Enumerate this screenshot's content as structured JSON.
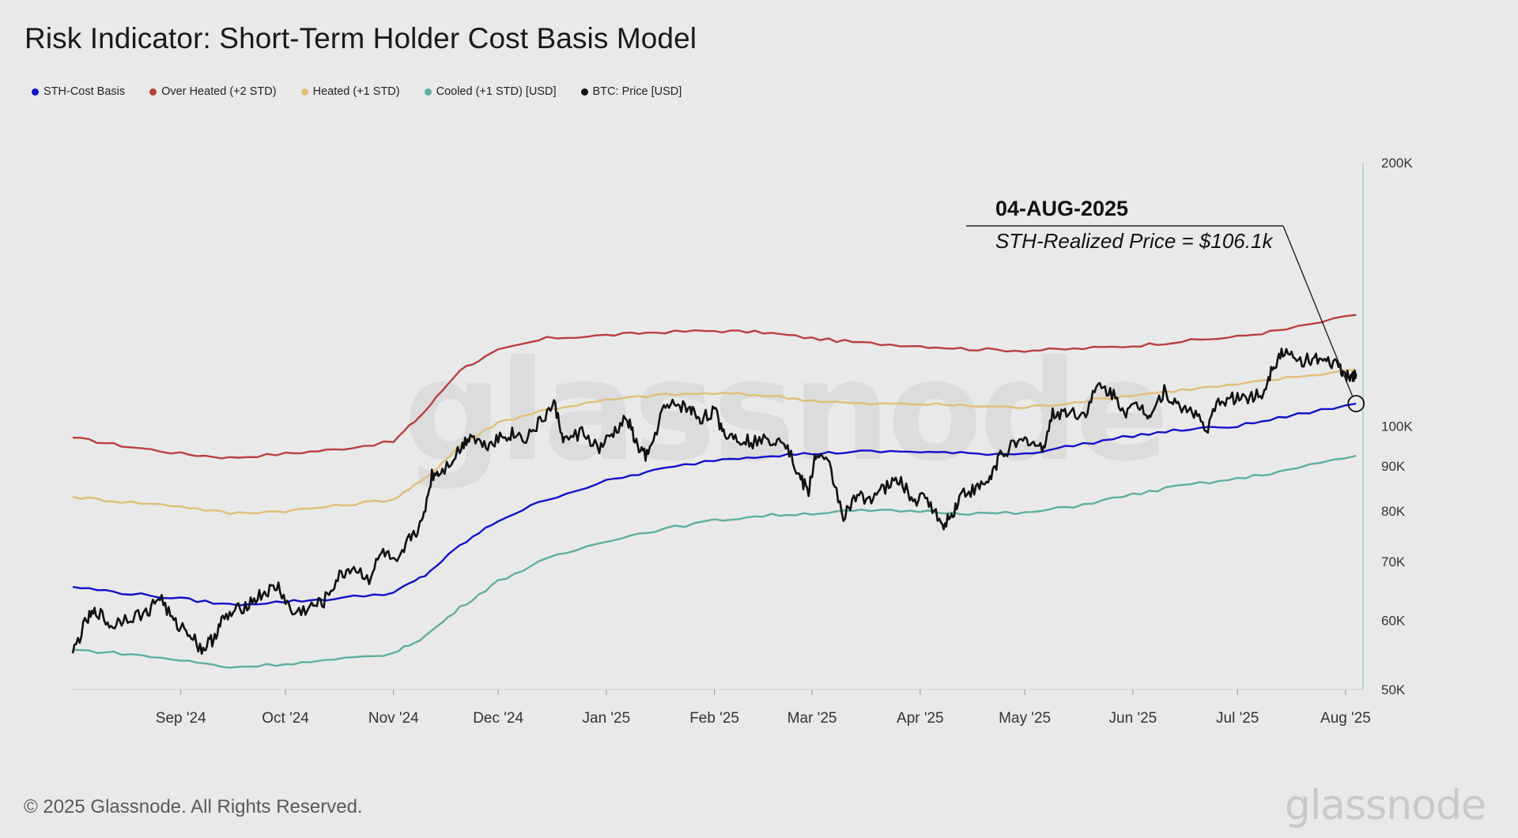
{
  "title": "Risk Indicator: Short-Term Holder Cost Basis Model",
  "legend": [
    {
      "label": "STH-Cost Basis",
      "color": "#1111cc"
    },
    {
      "label": "Over Heated (+2 STD)",
      "color": "#b8403f"
    },
    {
      "label": "Heated (+1 STD)",
      "color": "#e3bd78"
    },
    {
      "label": "Cooled (+1 STD) [USD]",
      "color": "#5fae9f"
    },
    {
      "label": "BTC: Price [USD]",
      "color": "#111111"
    }
  ],
  "annotation": {
    "date": "04-AUG-2025",
    "text": "STH-Realized Price = $106.1k",
    "value": 106100
  },
  "watermark": "glassnode",
  "footer": "© 2025 Glassnode. All Rights Reserved.",
  "brand": "glassnode",
  "chart_data": {
    "type": "line",
    "title": "Risk Indicator: Short-Term Holder Cost Basis Model",
    "y_scale": "log",
    "ylim": [
      50000,
      200000
    ],
    "y_ticks": [
      {
        "label": "200K",
        "value": 200000
      },
      {
        "label": "100K",
        "value": 100000
      },
      {
        "label": "90K",
        "value": 90000
      },
      {
        "label": "80K",
        "value": 80000
      },
      {
        "label": "70K",
        "value": 70000
      },
      {
        "label": "60K",
        "value": 60000
      },
      {
        "label": "50K",
        "value": 50000
      }
    ],
    "xlim": [
      "2024-08-01",
      "2025-08-06"
    ],
    "x_ticks": [
      {
        "label": "Sep '24",
        "date": "2024-09-01"
      },
      {
        "label": "Oct '24",
        "date": "2024-10-01"
      },
      {
        "label": "Nov '24",
        "date": "2024-11-01"
      },
      {
        "label": "Dec '24",
        "date": "2024-12-01"
      },
      {
        "label": "Jan '25",
        "date": "2025-01-01"
      },
      {
        "label": "Feb '25",
        "date": "2025-02-01"
      },
      {
        "label": "Mar '25",
        "date": "2025-03-01"
      },
      {
        "label": "Apr '25",
        "date": "2025-04-01"
      },
      {
        "label": "May '25",
        "date": "2025-05-01"
      },
      {
        "label": "Jun '25",
        "date": "2025-06-01"
      },
      {
        "label": "Jul '25",
        "date": "2025-07-01"
      },
      {
        "label": "Aug '25",
        "date": "2025-08-01"
      }
    ],
    "series": [
      {
        "name": "Over Heated (+2 STD)",
        "color": "#b8403f",
        "points": [
          [
            "2024-08-01",
            97000
          ],
          [
            "2024-08-15",
            95000
          ],
          [
            "2024-09-01",
            93000
          ],
          [
            "2024-09-15",
            92000
          ],
          [
            "2024-10-01",
            93000
          ],
          [
            "2024-10-15",
            94000
          ],
          [
            "2024-11-01",
            96000
          ],
          [
            "2024-11-10",
            104000
          ],
          [
            "2024-11-20",
            116000
          ],
          [
            "2024-12-01",
            122000
          ],
          [
            "2024-12-15",
            126000
          ],
          [
            "2025-01-01",
            127000
          ],
          [
            "2025-01-15",
            128000
          ],
          [
            "2025-02-01",
            128500
          ],
          [
            "2025-02-15",
            128000
          ],
          [
            "2025-03-01",
            126000
          ],
          [
            "2025-03-15",
            124500
          ],
          [
            "2025-04-01",
            123500
          ],
          [
            "2025-04-15",
            122500
          ],
          [
            "2025-05-01",
            122000
          ],
          [
            "2025-05-15",
            122500
          ],
          [
            "2025-06-01",
            123500
          ],
          [
            "2025-06-15",
            125000
          ],
          [
            "2025-07-01",
            126500
          ],
          [
            "2025-07-15",
            129000
          ],
          [
            "2025-08-04",
            134000
          ]
        ]
      },
      {
        "name": "Heated (+1 STD)",
        "color": "#e3bd78",
        "points": [
          [
            "2024-08-01",
            83000
          ],
          [
            "2024-08-15",
            82000
          ],
          [
            "2024-09-01",
            81000
          ],
          [
            "2024-09-15",
            79500
          ],
          [
            "2024-10-01",
            80000
          ],
          [
            "2024-10-15",
            81000
          ],
          [
            "2024-11-01",
            82500
          ],
          [
            "2024-11-10",
            87000
          ],
          [
            "2024-11-20",
            95000
          ],
          [
            "2024-12-01",
            101000
          ],
          [
            "2024-12-15",
            104500
          ],
          [
            "2025-01-01",
            107000
          ],
          [
            "2025-01-15",
            108500
          ],
          [
            "2025-02-01",
            109000
          ],
          [
            "2025-02-15",
            108500
          ],
          [
            "2025-03-01",
            107000
          ],
          [
            "2025-03-15",
            106000
          ],
          [
            "2025-04-01",
            106000
          ],
          [
            "2025-04-15",
            105500
          ],
          [
            "2025-05-01",
            105000
          ],
          [
            "2025-05-15",
            106500
          ],
          [
            "2025-06-01",
            108500
          ],
          [
            "2025-06-15",
            110000
          ],
          [
            "2025-07-01",
            111500
          ],
          [
            "2025-07-15",
            113500
          ],
          [
            "2025-08-04",
            116000
          ]
        ]
      },
      {
        "name": "STH-Cost Basis",
        "color": "#1111cc",
        "points": [
          [
            "2024-08-01",
            65500
          ],
          [
            "2024-08-15",
            64500
          ],
          [
            "2024-09-01",
            63500
          ],
          [
            "2024-09-15",
            62500
          ],
          [
            "2024-10-01",
            63000
          ],
          [
            "2024-10-15",
            63500
          ],
          [
            "2024-11-01",
            64500
          ],
          [
            "2024-11-10",
            67500
          ],
          [
            "2024-11-20",
            73000
          ],
          [
            "2024-12-01",
            78000
          ],
          [
            "2024-12-15",
            82500
          ],
          [
            "2025-01-01",
            86500
          ],
          [
            "2025-01-15",
            89000
          ],
          [
            "2025-02-01",
            91500
          ],
          [
            "2025-02-15",
            92500
          ],
          [
            "2025-03-01",
            93000
          ],
          [
            "2025-03-15",
            93500
          ],
          [
            "2025-04-01",
            93500
          ],
          [
            "2025-04-15",
            93000
          ],
          [
            "2025-05-01",
            93000
          ],
          [
            "2025-05-15",
            95000
          ],
          [
            "2025-06-01",
            97500
          ],
          [
            "2025-06-15",
            99000
          ],
          [
            "2025-07-01",
            100000
          ],
          [
            "2025-07-15",
            102500
          ],
          [
            "2025-08-04",
            106100
          ]
        ]
      },
      {
        "name": "Cooled (+1 STD) [USD]",
        "color": "#5fae9f",
        "points": [
          [
            "2024-08-01",
            55500
          ],
          [
            "2024-08-15",
            55000
          ],
          [
            "2024-09-01",
            54000
          ],
          [
            "2024-09-15",
            53000
          ],
          [
            "2024-10-01",
            53500
          ],
          [
            "2024-10-15",
            54000
          ],
          [
            "2024-11-01",
            55000
          ],
          [
            "2024-11-10",
            57500
          ],
          [
            "2024-11-20",
            62000
          ],
          [
            "2024-12-01",
            66500
          ],
          [
            "2024-12-15",
            70500
          ],
          [
            "2025-01-01",
            74000
          ],
          [
            "2025-01-15",
            76000
          ],
          [
            "2025-02-01",
            78000
          ],
          [
            "2025-02-15",
            79000
          ],
          [
            "2025-03-01",
            79500
          ],
          [
            "2025-03-15",
            80000
          ],
          [
            "2025-04-01",
            80000
          ],
          [
            "2025-04-15",
            79500
          ],
          [
            "2025-05-01",
            79500
          ],
          [
            "2025-05-15",
            81000
          ],
          [
            "2025-06-01",
            83500
          ],
          [
            "2025-06-15",
            85500
          ],
          [
            "2025-07-01",
            87000
          ],
          [
            "2025-07-15",
            89000
          ],
          [
            "2025-08-04",
            92500
          ]
        ]
      },
      {
        "name": "BTC: Price [USD]",
        "color": "#111111",
        "points": [
          [
            "2024-08-01",
            55000
          ],
          [
            "2024-08-05",
            60000
          ],
          [
            "2024-08-08",
            61500
          ],
          [
            "2024-08-12",
            59000
          ],
          [
            "2024-08-16",
            60500
          ],
          [
            "2024-08-22",
            61000
          ],
          [
            "2024-08-26",
            64000
          ],
          [
            "2024-08-30",
            59500
          ],
          [
            "2024-09-03",
            58500
          ],
          [
            "2024-09-07",
            55500
          ],
          [
            "2024-09-10",
            57000
          ],
          [
            "2024-09-13",
            60000
          ],
          [
            "2024-09-17",
            61500
          ],
          [
            "2024-09-21",
            63000
          ],
          [
            "2024-09-25",
            64500
          ],
          [
            "2024-09-29",
            65500
          ],
          [
            "2024-10-03",
            61000
          ],
          [
            "2024-10-08",
            62000
          ],
          [
            "2024-10-12",
            63000
          ],
          [
            "2024-10-16",
            67000
          ],
          [
            "2024-10-20",
            69000
          ],
          [
            "2024-10-25",
            67000
          ],
          [
            "2024-10-29",
            72000
          ],
          [
            "2024-11-02",
            69000
          ],
          [
            "2024-11-06",
            75000
          ],
          [
            "2024-11-09",
            77000
          ],
          [
            "2024-11-12",
            88000
          ],
          [
            "2024-11-15",
            89000
          ],
          [
            "2024-11-20",
            94000
          ],
          [
            "2024-11-23",
            98000
          ],
          [
            "2024-11-27",
            95000
          ],
          [
            "2024-12-01",
            97000
          ],
          [
            "2024-12-05",
            98000
          ],
          [
            "2024-12-09",
            97000
          ],
          [
            "2024-12-13",
            101000
          ],
          [
            "2024-12-17",
            106000
          ],
          [
            "2024-12-20",
            96000
          ],
          [
            "2024-12-25",
            98500
          ],
          [
            "2024-12-30",
            94000
          ],
          [
            "2025-01-03",
            98000
          ],
          [
            "2025-01-07",
            102000
          ],
          [
            "2025-01-10",
            94500
          ],
          [
            "2025-01-13",
            92000
          ],
          [
            "2025-01-17",
            104000
          ],
          [
            "2025-01-21",
            106000
          ],
          [
            "2025-01-25",
            104500
          ],
          [
            "2025-01-28",
            102000
          ],
          [
            "2025-02-01",
            104000
          ],
          [
            "2025-02-04",
            98000
          ],
          [
            "2025-02-08",
            97000
          ],
          [
            "2025-02-12",
            96000
          ],
          [
            "2025-02-17",
            96500
          ],
          [
            "2025-02-21",
            97000
          ],
          [
            "2025-02-25",
            88000
          ],
          [
            "2025-02-28",
            84000
          ],
          [
            "2025-03-02",
            93000
          ],
          [
            "2025-03-06",
            90000
          ],
          [
            "2025-03-10",
            79000
          ],
          [
            "2025-03-14",
            83000
          ],
          [
            "2025-03-18",
            83000
          ],
          [
            "2025-03-22",
            85000
          ],
          [
            "2025-03-26",
            87000
          ],
          [
            "2025-03-30",
            82000
          ],
          [
            "2025-04-03",
            83000
          ],
          [
            "2025-04-07",
            77000
          ],
          [
            "2025-04-10",
            79000
          ],
          [
            "2025-04-13",
            84000
          ],
          [
            "2025-04-17",
            84500
          ],
          [
            "2025-04-21",
            87000
          ],
          [
            "2025-04-24",
            93000
          ],
          [
            "2025-04-28",
            95000
          ],
          [
            "2025-05-02",
            96500
          ],
          [
            "2025-05-06",
            94000
          ],
          [
            "2025-05-09",
            103000
          ],
          [
            "2025-05-13",
            104000
          ],
          [
            "2025-05-18",
            103000
          ],
          [
            "2025-05-22",
            111000
          ],
          [
            "2025-05-26",
            109000
          ],
          [
            "2025-05-30",
            104000
          ],
          [
            "2025-06-03",
            105500
          ],
          [
            "2025-06-06",
            103000
          ],
          [
            "2025-06-10",
            110000
          ],
          [
            "2025-06-14",
            105000
          ],
          [
            "2025-06-18",
            104500
          ],
          [
            "2025-06-22",
            99000
          ],
          [
            "2025-06-26",
            107000
          ],
          [
            "2025-06-30",
            107500
          ],
          [
            "2025-07-04",
            108000
          ],
          [
            "2025-07-08",
            108500
          ],
          [
            "2025-07-11",
            117000
          ],
          [
            "2025-07-14",
            122000
          ],
          [
            "2025-07-18",
            118500
          ],
          [
            "2025-07-22",
            119500
          ],
          [
            "2025-07-26",
            118000
          ],
          [
            "2025-07-30",
            117500
          ],
          [
            "2025-08-01",
            113500
          ],
          [
            "2025-08-03",
            114500
          ],
          [
            "2025-08-04",
            114800
          ]
        ]
      }
    ],
    "grid": false,
    "legend_position": "top-left"
  }
}
